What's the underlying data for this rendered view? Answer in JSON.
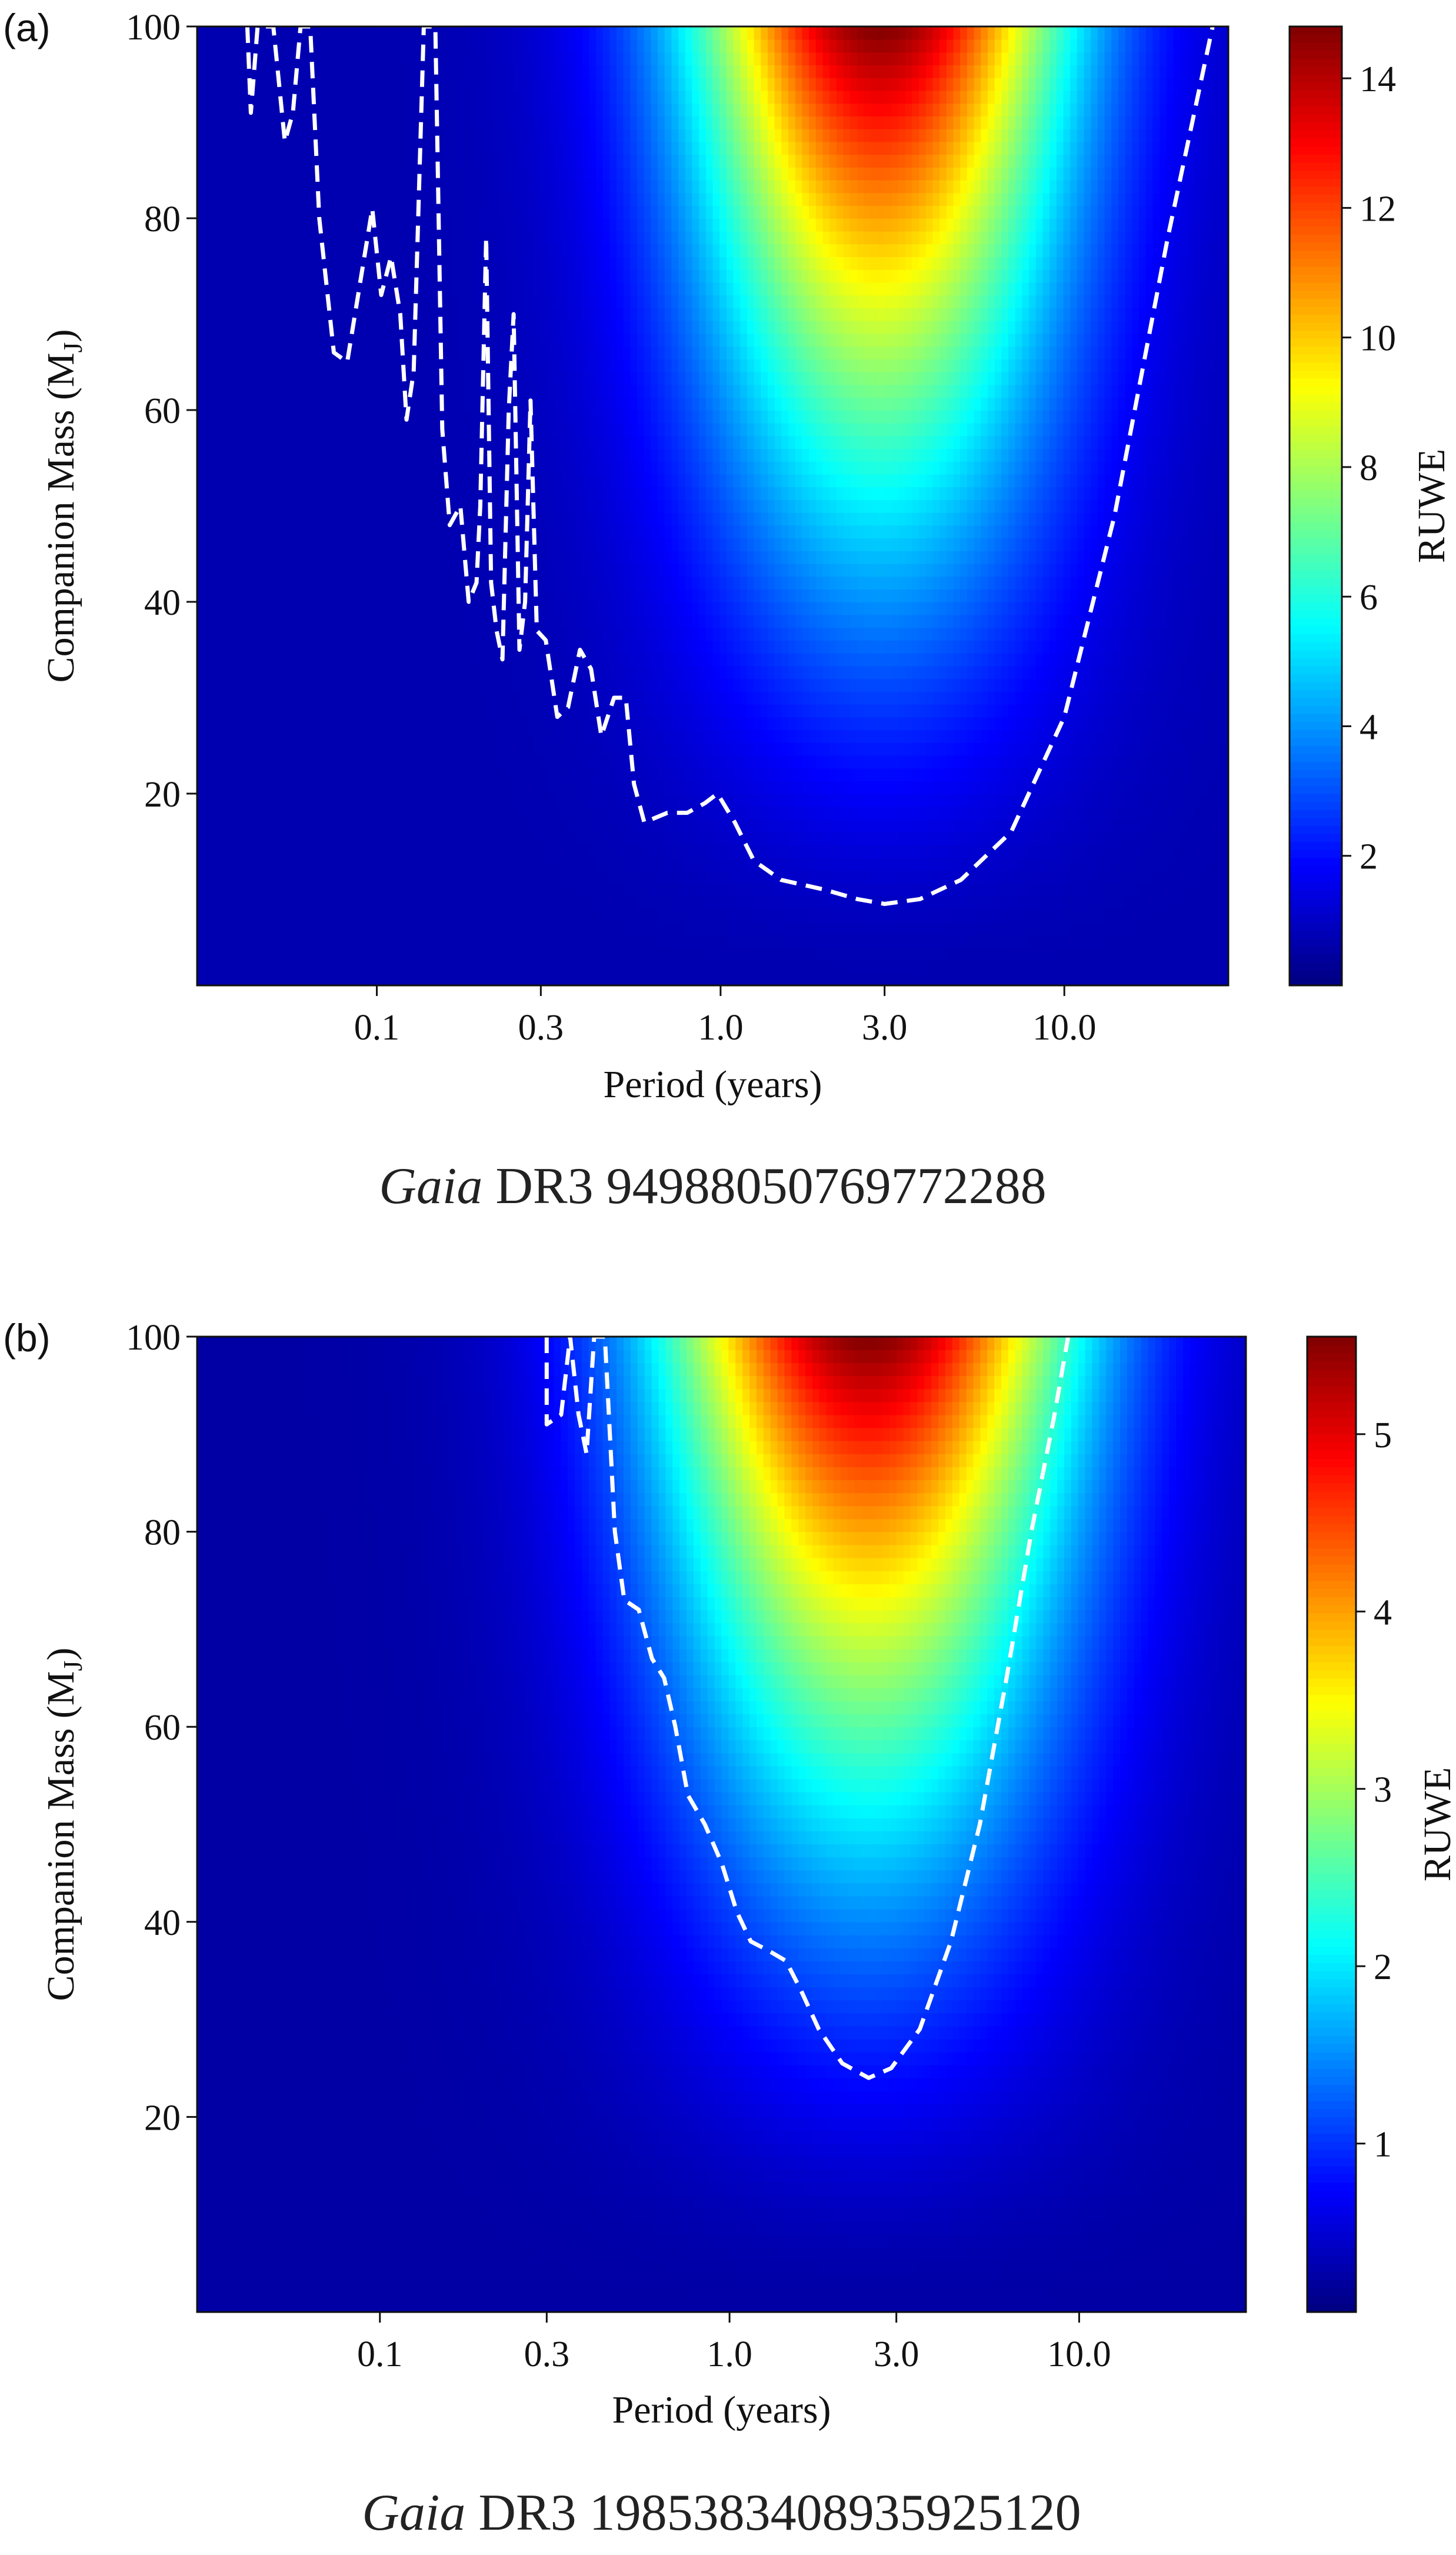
{
  "chart_data": [
    {
      "type": "heatmap",
      "panel_label": "(a)",
      "caption_italic": "Gaia",
      "caption_rest": " DR3 94988050769772288",
      "xlabel": "Period (years)",
      "ylabel_main": "Companion Mass (M",
      "ylabel_sub": "J",
      "ylabel_close": ")",
      "colorbar_label": "RUWE",
      "x_scale": "log",
      "xlim": [
        0.03,
        30
      ],
      "ylim": [
        0,
        100
      ],
      "x_ticks": [
        0.1,
        0.3,
        1.0,
        3.0,
        10.0
      ],
      "x_tick_labels": [
        "0.1",
        "0.3",
        "1.0",
        "3.0",
        "10.0"
      ],
      "y_ticks": [
        20,
        40,
        60,
        80,
        100
      ],
      "y_tick_labels": [
        "20",
        "40",
        "60",
        "80",
        "100"
      ],
      "colorbar_range": [
        0,
        14.8
      ],
      "colorbar_ticks": [
        2,
        4,
        6,
        8,
        10,
        12,
        14
      ],
      "colorbar_tick_labels": [
        "2",
        "4",
        "6",
        "8",
        "10",
        "12",
        "14"
      ],
      "colormap": "jet",
      "peak_period": 2.9,
      "peak_ruwe": 14.8,
      "contour_style": "white dashed",
      "contour": [
        [
          0.042,
          100
        ],
        [
          0.043,
          91
        ],
        [
          0.045,
          100
        ],
        [
          0.05,
          100
        ],
        [
          0.054,
          88
        ],
        [
          0.057,
          91
        ],
        [
          0.06,
          100
        ],
        [
          0.064,
          100
        ],
        [
          0.068,
          80
        ],
        [
          0.075,
          66
        ],
        [
          0.082,
          65
        ],
        [
          0.092,
          76
        ],
        [
          0.097,
          81
        ],
        [
          0.103,
          72
        ],
        [
          0.11,
          76
        ],
        [
          0.117,
          70
        ],
        [
          0.122,
          59
        ],
        [
          0.128,
          64
        ],
        [
          0.137,
          100
        ],
        [
          0.148,
          100
        ],
        [
          0.155,
          58
        ],
        [
          0.163,
          48
        ],
        [
          0.175,
          50
        ],
        [
          0.185,
          40
        ],
        [
          0.195,
          42
        ],
        [
          0.2,
          50
        ],
        [
          0.208,
          78
        ],
        [
          0.215,
          42
        ],
        [
          0.223,
          37
        ],
        [
          0.232,
          34
        ],
        [
          0.242,
          60
        ],
        [
          0.25,
          70
        ],
        [
          0.26,
          35
        ],
        [
          0.27,
          40
        ],
        [
          0.28,
          61
        ],
        [
          0.292,
          37
        ],
        [
          0.31,
          36
        ],
        [
          0.335,
          28
        ],
        [
          0.36,
          29
        ],
        [
          0.39,
          35
        ],
        [
          0.42,
          33
        ],
        [
          0.45,
          26
        ],
        [
          0.49,
          30
        ],
        [
          0.53,
          30
        ],
        [
          0.56,
          21
        ],
        [
          0.6,
          17
        ],
        [
          0.7,
          18
        ],
        [
          0.8,
          18
        ],
        [
          0.9,
          19
        ],
        [
          0.98,
          20
        ],
        [
          1.1,
          17
        ],
        [
          1.25,
          13
        ],
        [
          1.5,
          11
        ],
        [
          2.0,
          10
        ],
        [
          2.5,
          9
        ],
        [
          3.0,
          8.5
        ],
        [
          3.8,
          9
        ],
        [
          5,
          11
        ],
        [
          7,
          16
        ],
        [
          10,
          28
        ],
        [
          14,
          49
        ],
        [
          20,
          78
        ],
        [
          27,
          100
        ]
      ]
    },
    {
      "type": "heatmap",
      "panel_label": "(b)",
      "caption_italic": "Gaia",
      "caption_rest": " DR3 1985383408935925120",
      "xlabel": "Period (years)",
      "ylabel_main": "Companion Mass (M",
      "ylabel_sub": "J",
      "ylabel_close": ")",
      "colorbar_label": "RUWE",
      "x_scale": "log",
      "xlim": [
        0.03,
        30
      ],
      "ylim": [
        0,
        100
      ],
      "x_ticks": [
        0.1,
        0.3,
        1.0,
        3.0,
        10.0
      ],
      "x_tick_labels": [
        "0.1",
        "0.3",
        "1.0",
        "3.0",
        "10.0"
      ],
      "y_ticks": [
        20,
        40,
        60,
        80,
        100
      ],
      "y_tick_labels": [
        "20",
        "40",
        "60",
        "80",
        "100"
      ],
      "colorbar_range": [
        0.05,
        5.55
      ],
      "colorbar_ticks": [
        1,
        2,
        3,
        4,
        5
      ],
      "colorbar_tick_labels": [
        "1",
        "2",
        "3",
        "4",
        "5"
      ],
      "colormap": "jet",
      "peak_period": 2.5,
      "peak_ruwe": 5.55,
      "contour_style": "white dashed",
      "contour": [
        [
          0.3,
          100
        ],
        [
          0.3,
          91
        ],
        [
          0.33,
          92
        ],
        [
          0.35,
          100
        ],
        [
          0.37,
          92
        ],
        [
          0.39,
          88
        ],
        [
          0.41,
          100
        ],
        [
          0.44,
          100
        ],
        [
          0.47,
          80
        ],
        [
          0.5,
          73
        ],
        [
          0.55,
          72
        ],
        [
          0.6,
          67
        ],
        [
          0.65,
          65
        ],
        [
          0.7,
          60
        ],
        [
          0.76,
          53
        ],
        [
          0.85,
          50
        ],
        [
          0.95,
          46
        ],
        [
          1.05,
          41
        ],
        [
          1.15,
          38
        ],
        [
          1.3,
          37
        ],
        [
          1.45,
          36
        ],
        [
          1.6,
          33
        ],
        [
          1.8,
          29
        ],
        [
          2.1,
          25.5
        ],
        [
          2.5,
          24
        ],
        [
          2.9,
          25
        ],
        [
          3.5,
          29
        ],
        [
          4.3,
          38
        ],
        [
          5.2,
          50
        ],
        [
          6.2,
          65
        ],
        [
          7.3,
          80
        ],
        [
          8.5,
          92
        ],
        [
          9.3,
          100
        ]
      ]
    }
  ]
}
